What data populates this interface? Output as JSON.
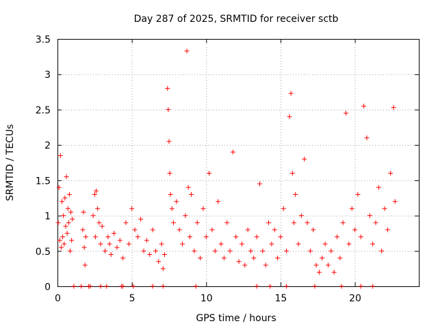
{
  "chart_data": {
    "type": "scatter",
    "title": "Day 287 of 2025, SRMTID for receiver sctb",
    "xlabel": "GPS time / hours",
    "ylabel": "SRMTID / TECUs",
    "xlim": [
      0,
      24.3
    ],
    "ylim": [
      0,
      3.5
    ],
    "x_ticks": [
      0,
      5,
      10,
      15,
      20
    ],
    "x_tick_labels": [
      "0",
      "5",
      "10",
      "15",
      "20"
    ],
    "y_ticks": [
      0,
      0.5,
      1,
      1.5,
      2,
      2.5,
      3,
      3.5
    ],
    "y_tick_labels": [
      "0",
      "0.5",
      "1",
      "1.5",
      "2",
      "2.5",
      "3",
      "3.5"
    ],
    "grid": true,
    "marker": "plus",
    "color": "#ff0000",
    "series": [
      {
        "name": "SRMTID",
        "points": [
          [
            0.05,
            0.9
          ],
          [
            0.1,
            1.4
          ],
          [
            0.15,
            0.65
          ],
          [
            0.2,
            1.85
          ],
          [
            0.25,
            0.55
          ],
          [
            0.3,
            1.2
          ],
          [
            0.35,
            0.7
          ],
          [
            0.4,
            1.0
          ],
          [
            0.45,
            0.6
          ],
          [
            0.5,
            1.25
          ],
          [
            0.55,
            0.85
          ],
          [
            0.6,
            1.55
          ],
          [
            0.65,
            0.75
          ],
          [
            0.7,
            1.1
          ],
          [
            0.75,
            0.9
          ],
          [
            0.8,
            1.3
          ],
          [
            0.85,
            0.5
          ],
          [
            0.9,
            1.05
          ],
          [
            0.95,
            0.65
          ],
          [
            1.0,
            0.95
          ],
          [
            1.7,
            0.8
          ],
          [
            1.75,
            1.05
          ],
          [
            1.8,
            0.55
          ],
          [
            1.85,
            0.3
          ],
          [
            1.9,
            0.7
          ],
          [
            2.4,
            1.0
          ],
          [
            2.5,
            1.3
          ],
          [
            2.55,
            0.7
          ],
          [
            2.6,
            1.35
          ],
          [
            2.7,
            1.1
          ],
          [
            2.8,
            0.9
          ],
          [
            2.9,
            0.6
          ],
          [
            3.0,
            0.85
          ],
          [
            3.2,
            0.5
          ],
          [
            3.4,
            0.7
          ],
          [
            3.5,
            0.6
          ],
          [
            3.6,
            0.45
          ],
          [
            3.8,
            0.75
          ],
          [
            4.0,
            0.55
          ],
          [
            4.2,
            0.65
          ],
          [
            4.4,
            0.4
          ],
          [
            4.6,
            0.9
          ],
          [
            4.8,
            0.6
          ],
          [
            5.0,
            1.1
          ],
          [
            5.2,
            0.8
          ],
          [
            5.4,
            0.7
          ],
          [
            5.6,
            0.95
          ],
          [
            5.8,
            0.5
          ],
          [
            6.0,
            0.65
          ],
          [
            6.2,
            0.45
          ],
          [
            6.4,
            0.8
          ],
          [
            6.6,
            0.5
          ],
          [
            6.8,
            0.35
          ],
          [
            7.0,
            0.6
          ],
          [
            7.1,
            0.25
          ],
          [
            7.2,
            0.45
          ],
          [
            7.4,
            2.8
          ],
          [
            7.45,
            2.5
          ],
          [
            7.5,
            2.05
          ],
          [
            7.55,
            1.6
          ],
          [
            7.6,
            1.3
          ],
          [
            7.7,
            1.1
          ],
          [
            7.8,
            0.9
          ],
          [
            8.0,
            1.2
          ],
          [
            8.2,
            0.8
          ],
          [
            8.4,
            0.6
          ],
          [
            8.6,
            1.0
          ],
          [
            8.7,
            3.33
          ],
          [
            8.8,
            1.4
          ],
          [
            8.9,
            0.7
          ],
          [
            9.0,
            1.3
          ],
          [
            9.2,
            0.5
          ],
          [
            9.4,
            0.9
          ],
          [
            9.6,
            0.4
          ],
          [
            9.8,
            1.1
          ],
          [
            10.0,
            0.7
          ],
          [
            10.2,
            1.6
          ],
          [
            10.4,
            0.8
          ],
          [
            10.6,
            0.5
          ],
          [
            10.8,
            1.2
          ],
          [
            11.0,
            0.6
          ],
          [
            11.2,
            0.4
          ],
          [
            11.4,
            0.9
          ],
          [
            11.6,
            0.5
          ],
          [
            11.8,
            1.9
          ],
          [
            12.0,
            0.7
          ],
          [
            12.2,
            0.35
          ],
          [
            12.4,
            0.6
          ],
          [
            12.6,
            0.3
          ],
          [
            12.8,
            0.8
          ],
          [
            13.0,
            0.5
          ],
          [
            13.2,
            0.4
          ],
          [
            13.4,
            0.7
          ],
          [
            13.6,
            1.45
          ],
          [
            13.8,
            0.5
          ],
          [
            14.0,
            0.3
          ],
          [
            14.2,
            0.9
          ],
          [
            14.4,
            0.6
          ],
          [
            14.6,
            0.8
          ],
          [
            14.8,
            0.4
          ],
          [
            15.0,
            0.7
          ],
          [
            15.2,
            1.1
          ],
          [
            15.4,
            0.5
          ],
          [
            15.6,
            2.4
          ],
          [
            15.7,
            2.73
          ],
          [
            15.8,
            1.6
          ],
          [
            15.9,
            0.9
          ],
          [
            16.0,
            1.3
          ],
          [
            16.2,
            0.6
          ],
          [
            16.4,
            1.0
          ],
          [
            16.6,
            1.8
          ],
          [
            16.8,
            0.9
          ],
          [
            17.0,
            0.5
          ],
          [
            17.2,
            0.8
          ],
          [
            17.4,
            0.3
          ],
          [
            17.6,
            0.2
          ],
          [
            17.8,
            0.4
          ],
          [
            18.0,
            0.6
          ],
          [
            18.2,
            0.3
          ],
          [
            18.4,
            0.5
          ],
          [
            18.6,
            0.2
          ],
          [
            18.8,
            0.7
          ],
          [
            19.0,
            0.4
          ],
          [
            19.2,
            0.9
          ],
          [
            19.4,
            2.45
          ],
          [
            19.6,
            0.6
          ],
          [
            19.8,
            1.1
          ],
          [
            20.0,
            0.8
          ],
          [
            20.2,
            1.3
          ],
          [
            20.4,
            0.7
          ],
          [
            20.6,
            2.55
          ],
          [
            20.8,
            2.1
          ],
          [
            21.0,
            1.0
          ],
          [
            21.2,
            0.6
          ],
          [
            21.4,
            0.9
          ],
          [
            21.6,
            1.4
          ],
          [
            21.8,
            0.5
          ],
          [
            22.0,
            1.1
          ],
          [
            22.2,
            0.8
          ],
          [
            22.4,
            1.6
          ],
          [
            22.6,
            2.53
          ],
          [
            22.7,
            1.2
          ],
          [
            1.1,
            0
          ],
          [
            1.6,
            0
          ],
          [
            2.1,
            0
          ],
          [
            2.2,
            0
          ],
          [
            2.9,
            0
          ],
          [
            3.3,
            0
          ],
          [
            4.3,
            0
          ],
          [
            4.4,
            0
          ],
          [
            5.1,
            0
          ],
          [
            6.4,
            0
          ],
          [
            7.1,
            0
          ],
          [
            9.3,
            0
          ],
          [
            13.4,
            0
          ],
          [
            14.3,
            0
          ],
          [
            15.4,
            0
          ],
          [
            17.3,
            0
          ],
          [
            19.1,
            0
          ],
          [
            20.4,
            0
          ],
          [
            21.2,
            0
          ]
        ]
      }
    ]
  }
}
